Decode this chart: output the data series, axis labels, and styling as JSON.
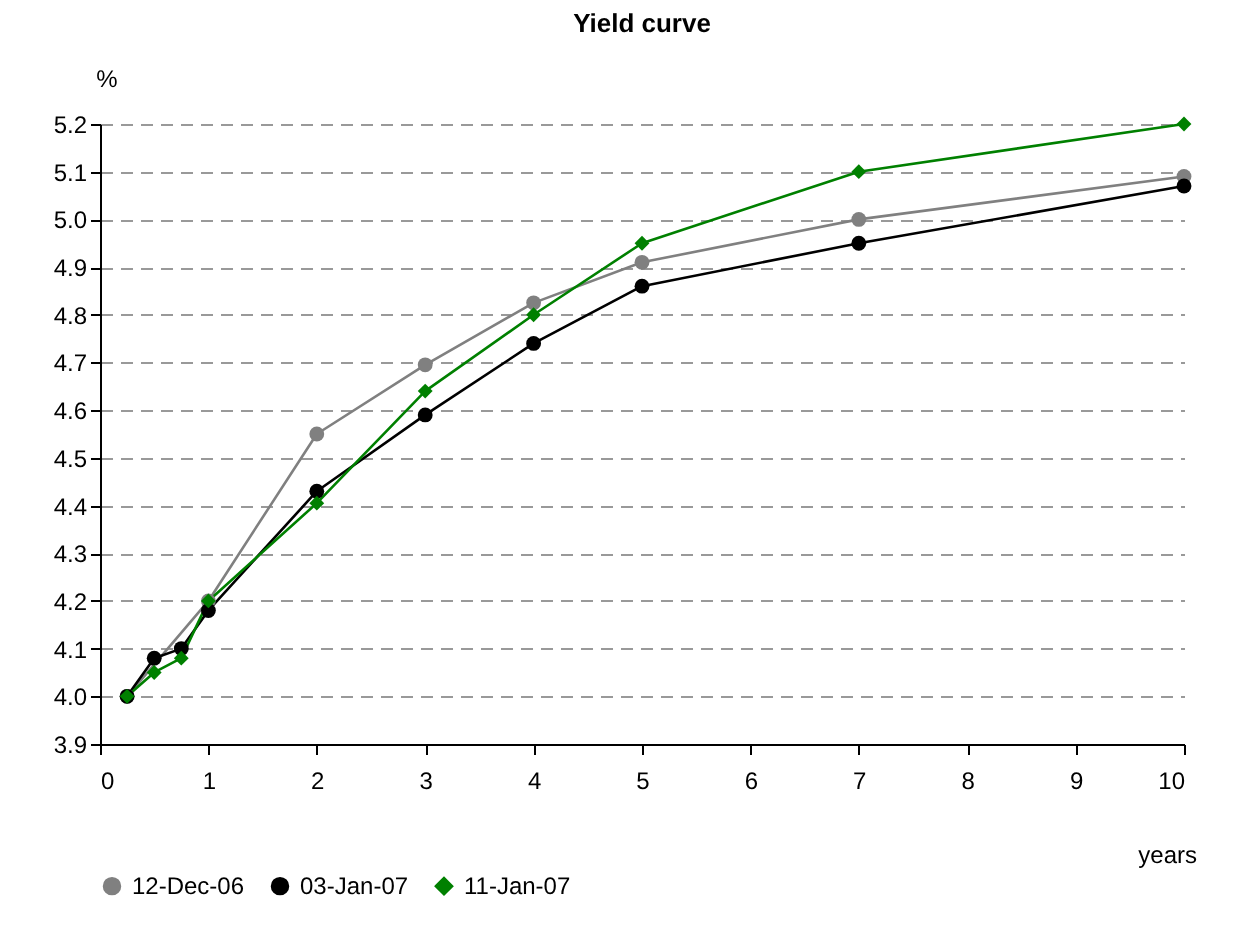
{
  "chart_data": {
    "type": "line",
    "title": "Yield curve",
    "xlabel": "years",
    "ylabel": "%",
    "xlim": [
      0,
      10
    ],
    "xticks": [
      0,
      1,
      2,
      3,
      4,
      5,
      6,
      7,
      8,
      9,
      10
    ],
    "ylim": [
      3.9,
      5.2
    ],
    "yticks": [
      3.9,
      {
        "value": 4,
        "label": "4.0"
      },
      4.1,
      4.2,
      4.3,
      4.4,
      4.5,
      4.6,
      4.7,
      4.8,
      4.9,
      {
        "value": 5,
        "label": "5.0"
      },
      5.1,
      5.2
    ],
    "grid": "y",
    "legend": "bottom",
    "line_style": "solid",
    "series": [
      {
        "name": "12-Dec-06",
        "color": "#808080",
        "marker": "circle",
        "x": [
          0.25,
          1,
          2,
          3,
          4,
          5,
          7,
          10
        ],
        "values": [
          4.0,
          4.2,
          4.55,
          4.695,
          4.825,
          4.91,
          5.0,
          5.09
        ]
      },
      {
        "name": "03-Jan-07",
        "color": "#000000",
        "marker": "circle",
        "x": [
          0.25,
          0.5,
          0.75,
          1,
          2,
          3,
          4,
          5,
          7,
          10
        ],
        "values": [
          4.0,
          4.08,
          4.1,
          4.18,
          4.43,
          4.59,
          4.74,
          4.86,
          4.95,
          5.07
        ]
      },
      {
        "name": "11-Jan-07",
        "color": "#008000",
        "marker": "diamond",
        "x": [
          0.25,
          0.5,
          0.75,
          1,
          2,
          3,
          4,
          5,
          7,
          10
        ],
        "values": [
          4.0,
          4.05,
          4.08,
          4.2,
          4.405,
          4.64,
          4.8,
          4.95,
          5.1,
          5.2
        ]
      }
    ]
  }
}
